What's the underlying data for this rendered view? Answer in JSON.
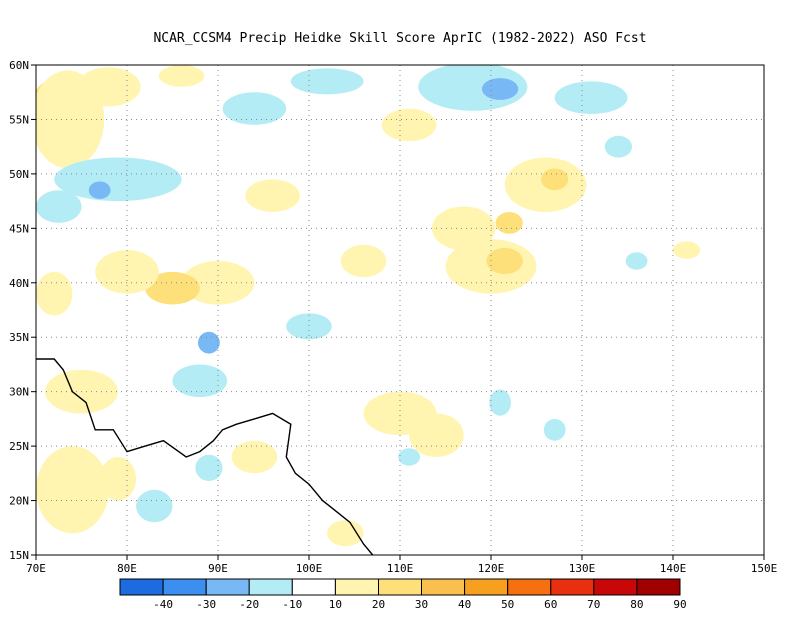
{
  "title": "NCAR_CCSM4 Precip Heidke Skill Score AprIC (1982-2022) ASO Fcst",
  "map": {
    "lon_range": [
      70,
      150
    ],
    "lat_range": [
      15,
      60
    ],
    "lon_ticks": [
      {
        "value": 70,
        "label": "70E"
      },
      {
        "value": 80,
        "label": "80E"
      },
      {
        "value": 90,
        "label": "90E"
      },
      {
        "value": 100,
        "label": "100E"
      },
      {
        "value": 110,
        "label": "110E"
      },
      {
        "value": 120,
        "label": "120E"
      },
      {
        "value": 130,
        "label": "130E"
      },
      {
        "value": 140,
        "label": "140E"
      },
      {
        "value": 150,
        "label": "150E"
      }
    ],
    "lat_ticks": [
      {
        "value": 60,
        "label": "60N"
      },
      {
        "value": 55,
        "label": "55N"
      },
      {
        "value": 50,
        "label": "50N"
      },
      {
        "value": 45,
        "label": "45N"
      },
      {
        "value": 40,
        "label": "40N"
      },
      {
        "value": 35,
        "label": "35N"
      },
      {
        "value": 30,
        "label": "30N"
      },
      {
        "value": 25,
        "label": "25N"
      },
      {
        "value": 20,
        "label": "20N"
      },
      {
        "value": 15,
        "label": "15N"
      }
    ],
    "grid": true
  },
  "colorbar": {
    "labels": [
      "-40",
      "-30",
      "-20",
      "-10",
      "10",
      "20",
      "30",
      "40",
      "50",
      "60",
      "70",
      "80",
      "90"
    ],
    "colors": [
      "#1e6be0",
      "#3c8ef0",
      "#78b8f5",
      "#b4ecf5",
      "#ffffff",
      "#fff5b0",
      "#fde07a",
      "#f9c050",
      "#f7a020",
      "#f47010",
      "#e83010",
      "#c80808",
      "#a00000"
    ]
  },
  "regions": [
    {
      "level": 30,
      "lon": 71.5,
      "lat": 56.0,
      "rlon": 2.0,
      "rlat": 2.5
    },
    {
      "level": 20,
      "lon": 73.5,
      "lat": 55.0,
      "rlon": 4.0,
      "rlat": 4.5
    },
    {
      "level": 20,
      "lon": 78.0,
      "lat": 58.0,
      "rlon": 3.5,
      "rlat": 1.8
    },
    {
      "level": -10,
      "lon": 79.0,
      "lat": 49.5,
      "rlon": 7.0,
      "rlat": 2.0
    },
    {
      "level": -20,
      "lon": 77.0,
      "lat": 48.5,
      "rlon": 1.2,
      "rlat": 0.8
    },
    {
      "level": -10,
      "lon": 72.5,
      "lat": 47.0,
      "rlon": 2.5,
      "rlat": 1.5
    },
    {
      "level": -10,
      "lon": 94.0,
      "lat": 56.0,
      "rlon": 3.5,
      "rlat": 1.5
    },
    {
      "level": -10,
      "lon": 102.0,
      "lat": 58.5,
      "rlon": 4.0,
      "rlat": 1.2
    },
    {
      "level": -10,
      "lon": 118.0,
      "lat": 58.0,
      "rlon": 6.0,
      "rlat": 2.2
    },
    {
      "level": -20,
      "lon": 121.0,
      "lat": 57.8,
      "rlon": 2.0,
      "rlat": 1.0
    },
    {
      "level": -10,
      "lon": 131.0,
      "lat": 57.0,
      "rlon": 4.0,
      "rlat": 1.5
    },
    {
      "level": -10,
      "lon": 134.0,
      "lat": 52.5,
      "rlon": 1.5,
      "rlat": 1.0
    },
    {
      "level": 20,
      "lon": 111.0,
      "lat": 54.5,
      "rlon": 3.0,
      "rlat": 1.5
    },
    {
      "level": 20,
      "lon": 86.0,
      "lat": 59.0,
      "rlon": 2.5,
      "rlat": 1.0
    },
    {
      "level": 20,
      "lon": 96.0,
      "lat": 48.0,
      "rlon": 3.0,
      "rlat": 1.5
    },
    {
      "level": 20,
      "lon": 126.0,
      "lat": 49.0,
      "rlon": 4.5,
      "rlat": 2.5
    },
    {
      "level": 30,
      "lon": 127.0,
      "lat": 49.5,
      "rlon": 1.5,
      "rlat": 1.0
    },
    {
      "level": 20,
      "lon": 117.0,
      "lat": 45.0,
      "rlon": 3.5,
      "rlat": 2.0
    },
    {
      "level": 30,
      "lon": 122.0,
      "lat": 45.5,
      "rlon": 1.5,
      "rlat": 1.0
    },
    {
      "level": 20,
      "lon": 120.0,
      "lat": 41.5,
      "rlon": 5.0,
      "rlat": 2.5
    },
    {
      "level": 30,
      "lon": 121.5,
      "lat": 42.0,
      "rlon": 2.0,
      "rlat": 1.2
    },
    {
      "level": 20,
      "lon": 90.0,
      "lat": 40.0,
      "rlon": 4.0,
      "rlat": 2.0
    },
    {
      "level": 30,
      "lon": 85.0,
      "lat": 39.5,
      "rlon": 3.0,
      "rlat": 1.5
    },
    {
      "level": 20,
      "lon": 80.0,
      "lat": 41.0,
      "rlon": 3.5,
      "rlat": 2.0
    },
    {
      "level": 20,
      "lon": 72.0,
      "lat": 39.0,
      "rlon": 2.0,
      "rlat": 2.0
    },
    {
      "level": 20,
      "lon": 106.0,
      "lat": 42.0,
      "rlon": 2.5,
      "rlat": 1.5
    },
    {
      "level": 20,
      "lon": 75.0,
      "lat": 30.0,
      "rlon": 4.0,
      "rlat": 2.0
    },
    {
      "level": 20,
      "lon": 74.0,
      "lat": 21.0,
      "rlon": 4.0,
      "rlat": 4.0
    },
    {
      "level": 20,
      "lon": 79.0,
      "lat": 22.0,
      "rlon": 2.0,
      "rlat": 2.0
    },
    {
      "level": 20,
      "lon": 110.0,
      "lat": 28.0,
      "rlon": 4.0,
      "rlat": 2.0
    },
    {
      "level": 20,
      "lon": 114.0,
      "lat": 26.0,
      "rlon": 3.0,
      "rlat": 2.0
    },
    {
      "level": 20,
      "lon": 94.0,
      "lat": 24.0,
      "rlon": 2.5,
      "rlat": 1.5
    },
    {
      "level": 20,
      "lon": 104.0,
      "lat": 17.0,
      "rlon": 2.0,
      "rlat": 1.2
    },
    {
      "level": -10,
      "lon": 88.0,
      "lat": 31.0,
      "rlon": 3.0,
      "rlat": 1.5
    },
    {
      "level": -20,
      "lon": 89.0,
      "lat": 34.5,
      "rlon": 1.2,
      "rlat": 1.0
    },
    {
      "level": -10,
      "lon": 100.0,
      "lat": 36.0,
      "rlon": 2.5,
      "rlat": 1.2
    },
    {
      "level": -10,
      "lon": 83.0,
      "lat": 19.5,
      "rlon": 2.0,
      "rlat": 1.5
    },
    {
      "level": -10,
      "lon": 89.0,
      "lat": 23.0,
      "rlon": 1.5,
      "rlat": 1.2
    },
    {
      "level": -10,
      "lon": 121.0,
      "lat": 29.0,
      "rlon": 1.2,
      "rlat": 1.2
    },
    {
      "level": -10,
      "lon": 127.0,
      "lat": 26.5,
      "rlon": 1.2,
      "rlat": 1.0
    },
    {
      "level": -10,
      "lon": 111.0,
      "lat": 24.0,
      "rlon": 1.2,
      "rlat": 0.8
    },
    {
      "level": -10,
      "lon": 136.0,
      "lat": 42.0,
      "rlon": 1.2,
      "rlat": 0.8
    },
    {
      "level": 20,
      "lon": 141.5,
      "lat": 43.0,
      "rlon": 1.5,
      "rlat": 0.8
    }
  ],
  "coastline": [
    [
      70.0,
      33.0
    ],
    [
      72.0,
      33.0
    ],
    [
      73.0,
      32.0
    ],
    [
      74.0,
      30.0
    ],
    [
      75.5,
      29.0
    ],
    [
      76.5,
      26.5
    ],
    [
      78.5,
      26.5
    ],
    [
      80.0,
      24.5
    ],
    [
      82.0,
      25.0
    ],
    [
      84.0,
      25.5
    ],
    [
      86.5,
      24.0
    ],
    [
      88.0,
      24.5
    ],
    [
      89.5,
      25.5
    ],
    [
      90.5,
      26.5
    ],
    [
      92.0,
      27.0
    ],
    [
      94.0,
      27.5
    ],
    [
      96.0,
      28.0
    ],
    [
      98.0,
      27.0
    ],
    [
      97.5,
      24.0
    ],
    [
      98.5,
      22.5
    ],
    [
      100.0,
      21.5
    ],
    [
      101.5,
      20.0
    ],
    [
      103.0,
      19.0
    ],
    [
      104.5,
      18.0
    ],
    [
      106.0,
      16.0
    ],
    [
      107.0,
      15.0
    ]
  ]
}
